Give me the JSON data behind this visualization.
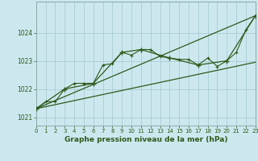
{
  "title": "Graphe pression niveau de la mer (hPa)",
  "background_color": "#cce8ee",
  "grid_color": "#aaccd4",
  "line_color": "#2d5a1b",
  "spine_color": "#8aaaaa",
  "xlim": [
    0,
    23
  ],
  "ylim": [
    1020.7,
    1025.1
  ],
  "yticks": [
    1021,
    1022,
    1023,
    1024
  ],
  "xticks": [
    0,
    1,
    2,
    3,
    4,
    5,
    6,
    7,
    8,
    9,
    10,
    11,
    12,
    13,
    14,
    15,
    16,
    17,
    18,
    19,
    20,
    21,
    22,
    23
  ],
  "series_main": [
    [
      0,
      1021.3
    ],
    [
      1,
      1021.55
    ],
    [
      2,
      1021.55
    ],
    [
      3,
      1022.0
    ],
    [
      4,
      1022.2
    ],
    [
      5,
      1022.2
    ],
    [
      6,
      1022.2
    ],
    [
      7,
      1022.85
    ],
    [
      8,
      1022.9
    ],
    [
      9,
      1023.3
    ],
    [
      10,
      1023.2
    ],
    [
      11,
      1023.4
    ],
    [
      12,
      1023.4
    ],
    [
      13,
      1023.15
    ],
    [
      14,
      1023.1
    ],
    [
      15,
      1023.05
    ],
    [
      16,
      1023.05
    ],
    [
      17,
      1022.85
    ],
    [
      18,
      1023.1
    ],
    [
      19,
      1022.8
    ],
    [
      20,
      1023.0
    ],
    [
      21,
      1023.3
    ],
    [
      22,
      1024.1
    ],
    [
      23,
      1024.6
    ]
  ],
  "series_trend_high": [
    [
      0,
      1021.3
    ],
    [
      23,
      1024.6
    ]
  ],
  "series_trend_low": [
    [
      0,
      1021.3
    ],
    [
      23,
      1022.95
    ]
  ],
  "series_3h": [
    [
      0,
      1021.3
    ],
    [
      3,
      1022.0
    ],
    [
      6,
      1022.2
    ],
    [
      9,
      1023.3
    ],
    [
      11,
      1023.4
    ],
    [
      14,
      1023.1
    ],
    [
      17,
      1022.85
    ],
    [
      20,
      1023.0
    ],
    [
      23,
      1024.6
    ]
  ]
}
